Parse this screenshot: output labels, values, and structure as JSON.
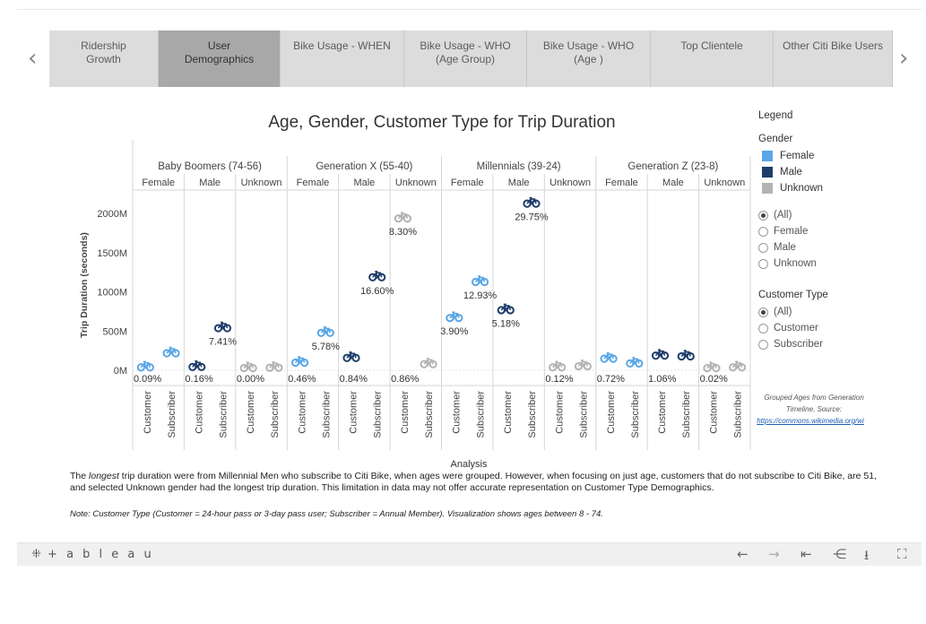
{
  "nav": {
    "tabs": [
      {
        "label": "Ridership\nGrowth",
        "active": false
      },
      {
        "label": "User\nDemographics",
        "active": true
      },
      {
        "label": "Bike Usage - WHEN",
        "active": false
      },
      {
        "label": "Bike Usage -  WHO\n(Age Group)",
        "active": false
      },
      {
        "label": "Bike Usage -  WHO\n(Age )",
        "active": false
      },
      {
        "label": "Top Clientele",
        "active": false
      },
      {
        "label": "Other Citi Bike Users",
        "active": false
      }
    ],
    "prev_icon": "chevron-left-icon",
    "next_icon": "chevron-right-icon"
  },
  "chart_data": {
    "type": "scatter",
    "title": "Age, Gender, Customer Type for Trip Duration",
    "ylabel": "Trip Duration (seconds)",
    "xlabel": "Analysis",
    "ylim": [
      0,
      2300
    ],
    "yunit": "M",
    "yticks": [
      "0M",
      "500M",
      "1000M",
      "1500M",
      "2000M"
    ],
    "ytick_values": [
      0,
      500,
      1000,
      1500,
      2000
    ],
    "grid": false,
    "legend_position": "right",
    "marker": "bicycle-icon",
    "colors": {
      "Female": "#5aa6e6",
      "Male": "#1f3d6b",
      "Unknown": "#b3b3b3"
    },
    "generations": [
      "Baby Boomers (74-56)",
      "Generation X (55-40)",
      "Millennials (39-24)",
      "Generation Z (23-8)"
    ],
    "genders": [
      "Female",
      "Male",
      "Unknown"
    ],
    "customer_types": [
      "Customer",
      "Subscriber"
    ],
    "points": [
      {
        "generation": "Baby Boomers (74-56)",
        "gender": "Female",
        "type": "Customer",
        "y": 20,
        "label": "0.09%"
      },
      {
        "generation": "Baby Boomers (74-56)",
        "gender": "Female",
        "type": "Subscriber",
        "y": 200,
        "label": ""
      },
      {
        "generation": "Baby Boomers (74-56)",
        "gender": "Male",
        "type": "Customer",
        "y": 25,
        "label": "0.16%"
      },
      {
        "generation": "Baby Boomers (74-56)",
        "gender": "Male",
        "type": "Subscriber",
        "y": 520,
        "label": "7.41%"
      },
      {
        "generation": "Baby Boomers (74-56)",
        "gender": "Unknown",
        "type": "Customer",
        "y": 10,
        "label": "0.00%"
      },
      {
        "generation": "Baby Boomers (74-56)",
        "gender": "Unknown",
        "type": "Subscriber",
        "y": 15,
        "label": ""
      },
      {
        "generation": "Generation X (55-40)",
        "gender": "Female",
        "type": "Customer",
        "y": 80,
        "label": "0.46%"
      },
      {
        "generation": "Generation X (55-40)",
        "gender": "Female",
        "type": "Subscriber",
        "y": 460,
        "label": "5.78%"
      },
      {
        "generation": "Generation X (55-40)",
        "gender": "Male",
        "type": "Customer",
        "y": 140,
        "label": "0.84%"
      },
      {
        "generation": "Generation X (55-40)",
        "gender": "Male",
        "type": "Subscriber",
        "y": 1170,
        "label": "16.60%"
      },
      {
        "generation": "Generation X (55-40)",
        "gender": "Unknown",
        "type": "Customer",
        "y": 1920,
        "label": "8.30%"
      },
      {
        "generation": "Generation X (55-40)",
        "gender": "Unknown",
        "type": "Subscriber",
        "y": 60,
        "label": "0.86%"
      },
      {
        "generation": "Millennials (39-24)",
        "gender": "Female",
        "type": "Customer",
        "y": 650,
        "label": "3.90%"
      },
      {
        "generation": "Millennials (39-24)",
        "gender": "Female",
        "type": "Subscriber",
        "y": 1110,
        "label": "12.93%"
      },
      {
        "generation": "Millennials (39-24)",
        "gender": "Male",
        "type": "Customer",
        "y": 750,
        "label": "5.18%"
      },
      {
        "generation": "Millennials (39-24)",
        "gender": "Male",
        "type": "Subscriber",
        "y": 2110,
        "label": "29.75%"
      },
      {
        "generation": "Millennials (39-24)",
        "gender": "Unknown",
        "type": "Customer",
        "y": 20,
        "label": "0.12%"
      },
      {
        "generation": "Millennials (39-24)",
        "gender": "Unknown",
        "type": "Subscriber",
        "y": 35,
        "label": ""
      },
      {
        "generation": "Generation Z (23-8)",
        "gender": "Female",
        "type": "Customer",
        "y": 130,
        "label": "0.72%"
      },
      {
        "generation": "Generation Z (23-8)",
        "gender": "Female",
        "type": "Subscriber",
        "y": 70,
        "label": ""
      },
      {
        "generation": "Generation Z (23-8)",
        "gender": "Male",
        "type": "Customer",
        "y": 170,
        "label": "1.06%"
      },
      {
        "generation": "Generation Z (23-8)",
        "gender": "Male",
        "type": "Subscriber",
        "y": 160,
        "label": ""
      },
      {
        "generation": "Generation Z (23-8)",
        "gender": "Unknown",
        "type": "Customer",
        "y": 10,
        "label": "0.02%"
      },
      {
        "generation": "Generation Z (23-8)",
        "gender": "Unknown",
        "type": "Subscriber",
        "y": 20,
        "label": ""
      }
    ]
  },
  "legend": {
    "title": "Legend",
    "gender_title": "Gender",
    "swatches": [
      {
        "label": "Female",
        "color": "#5aa6e6"
      },
      {
        "label": "Male",
        "color": "#1f3d6b"
      },
      {
        "label": "Unknown",
        "color": "#b3b3b3"
      }
    ],
    "gender_filter": {
      "options": [
        "(All)",
        "Female",
        "Male",
        "Unknown"
      ],
      "selected": "(All)"
    },
    "customer_type_title": "Customer Type",
    "customer_type_filter": {
      "options": [
        "(All)",
        "Customer",
        "Subscriber"
      ],
      "selected": "(All)"
    },
    "source_text": "Grouped Ages from Generation Timeline, Source:",
    "source_link": "https://commons.wikimedia.org/wi"
  },
  "caption": {
    "part1": "The ",
    "emph": "longest",
    "part2": " trip duration were from Millennial Men who subscribe to Citi Bike, when ages were grouped. However, when focusing on just age, customers that do not subscribe to Citi Bike, are 51, and selected Unknown gender had the longest trip duration. This limitation in data may not offer accurate representation on Customer Type Demographics.",
    "note": "Note: Customer Type (Customer = 24-hour pass or 3-day pass user; Subscriber = Annual Member). Visualization shows ages between 8 - 74."
  },
  "footer": {
    "logo": "+ a b l e a u",
    "logo_icon": "tableau-logo-icon",
    "tools": [
      "undo-icon",
      "redo-icon",
      "revert-icon",
      "share-icon",
      "download-icon",
      "fullscreen-icon"
    ]
  }
}
